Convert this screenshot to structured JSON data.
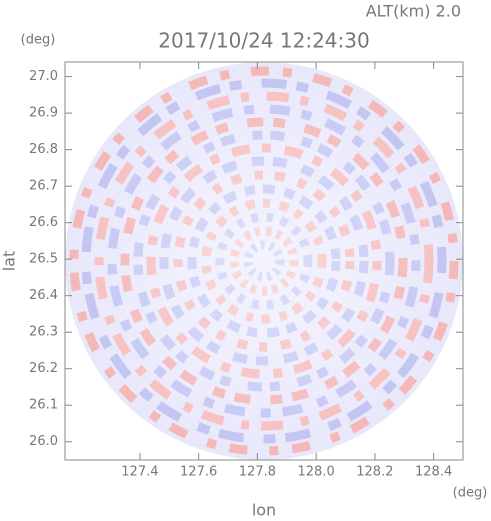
{
  "chart_data": {
    "type": "radar-ppi",
    "title": "2017/10/24 12:24:30",
    "subtitle": "ALT(km) 2.0",
    "y_unit": "(deg)",
    "x_unit": "(deg)",
    "x_label": "lon",
    "y_label": "lat",
    "xlim": [
      127.145,
      128.5
    ],
    "ylim": [
      25.95,
      27.04
    ],
    "xticks": [
      127.4,
      127.6,
      127.8,
      {
        "value": 128.0,
        "label": "128.0"
      },
      128.2,
      128.4
    ],
    "yticks": [
      {
        "value": 26.0,
        "label": "26.0"
      },
      26.1,
      26.2,
      26.3,
      26.4,
      26.5,
      26.6,
      26.7,
      26.8,
      26.9,
      {
        "value": 27.0,
        "label": "27.0"
      }
    ]
  }
}
